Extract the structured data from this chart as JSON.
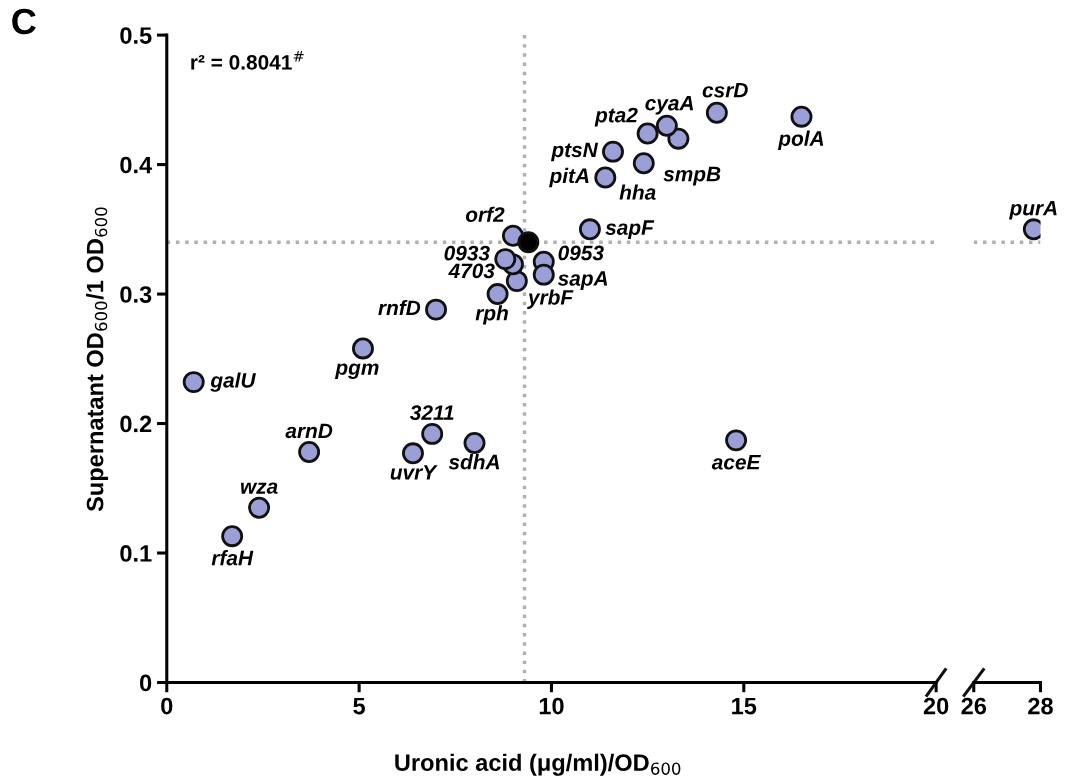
{
  "chart_data": [
    {
      "type": "scatter",
      "title": "C",
      "xlabel": "Uronic acid (μg/ml)/OD$_{600}$",
      "ylabel": "Supernatant OD$_{600}$/1 OD$_{600}$",
      "xlim": [
        0,
        20
      ],
      "ylim": [
        0,
        0.5
      ],
      "xticks": [
        0,
        5,
        10,
        15,
        20
      ],
      "yticks": [
        0,
        0.1,
        0.2,
        0.3,
        0.4,
        0.5
      ],
      "grid": false,
      "legend": false,
      "marker": "circle",
      "series": [
        {
          "color": "#9b9fd8",
          "x": [
            0.7,
            1.7,
            2.4,
            3.7,
            5.1,
            6.4,
            6.9,
            8.0,
            7.0,
            8.6,
            9.1,
            9.0,
            8.8,
            9.0,
            9.8,
            9.8,
            11.0,
            11.4,
            12.4,
            11.6,
            13.3,
            12.5,
            13.0,
            14.3,
            16.5,
            14.8
          ],
          "values": [
            0.232,
            0.113,
            0.135,
            0.178,
            0.258,
            0.177,
            0.192,
            0.185,
            0.288,
            0.3,
            0.31,
            0.323,
            0.327,
            0.345,
            0.325,
            0.315,
            0.35,
            0.39,
            0.401,
            0.41,
            0.42,
            0.424,
            0.43,
            0.44,
            0.437,
            0.187
          ]
        },
        {
          "color": "#000000",
          "x": [
            9.4
          ],
          "values": [
            0.34
          ]
        }
      ],
      "ref_lines": [
        {
          "axis": "x",
          "value": 9.3,
          "color": "#b0b0b0",
          "line_style": "dotted"
        },
        {
          "axis": "y",
          "value": 0.34,
          "color": "#b0b0b0",
          "line_style": "dotted"
        }
      ],
      "annotations": [
        "r² = 0.8041$^{#}$",
        {
          "text": "galU",
          "x": 0.7,
          "y": 0.232
        },
        {
          "text": "rfaH",
          "x": 1.7,
          "y": 0.113
        },
        {
          "text": "wza",
          "x": 2.4,
          "y": 0.135
        },
        {
          "text": "arnD",
          "x": 3.7,
          "y": 0.178
        },
        {
          "text": "pgm",
          "x": 5.1,
          "y": 0.258
        },
        {
          "text": "uvrY",
          "x": 6.4,
          "y": 0.177
        },
        {
          "text": "3211",
          "x": 6.9,
          "y": 0.192
        },
        {
          "text": "sdhA",
          "x": 8.0,
          "y": 0.185
        },
        {
          "text": "rnfD",
          "x": 7.0,
          "y": 0.288
        },
        {
          "text": "rph",
          "x": 8.6,
          "y": 0.3
        },
        {
          "text": "yrbF",
          "x": 9.1,
          "y": 0.31
        },
        {
          "text": "4703",
          "x": 9.0,
          "y": 0.323
        },
        {
          "text": "0933",
          "x": 8.8,
          "y": 0.327
        },
        {
          "text": "orf2",
          "x": 9.0,
          "y": 0.345
        },
        {
          "text": "0953",
          "x": 9.8,
          "y": 0.325
        },
        {
          "text": "sapA",
          "x": 9.8,
          "y": 0.315
        },
        {
          "text": "sapF",
          "x": 11.0,
          "y": 0.35
        },
        {
          "text": "pitA",
          "x": 11.4,
          "y": 0.39
        },
        {
          "text": "hha",
          "x": 11.4,
          "y": 0.39
        },
        {
          "text": "ptsN",
          "x": 11.6,
          "y": 0.41
        },
        {
          "text": "smpB",
          "x": 12.4,
          "y": 0.401
        },
        {
          "text": "pta2",
          "x": 12.5,
          "y": 0.424
        },
        {
          "text": "cyaA",
          "x": 13.0,
          "y": 0.43
        },
        {
          "text": "csrD",
          "x": 14.3,
          "y": 0.44
        },
        {
          "text": "polA",
          "x": 16.5,
          "y": 0.437
        },
        {
          "text": "aceE",
          "x": 14.8,
          "y": 0.187
        }
      ]
    },
    {
      "type": "scatter",
      "xlim": [
        26,
        28
      ],
      "ylim": [
        0,
        0.5
      ],
      "xticks": [
        26,
        28
      ],
      "tick_labels": "x",
      "grid": false,
      "legend": false,
      "marker": "circle",
      "series": [
        {
          "color": "#9b9fd8",
          "x": [
            27.8
          ],
          "values": [
            0.35
          ]
        }
      ],
      "ref_lines": [
        {
          "axis": "y",
          "value": 0.34,
          "color": "#b0b0b0",
          "line_style": "dotted"
        }
      ],
      "annotations": [
        {
          "text": "purA",
          "x": 27.8,
          "y": 0.35
        }
      ]
    }
  ]
}
